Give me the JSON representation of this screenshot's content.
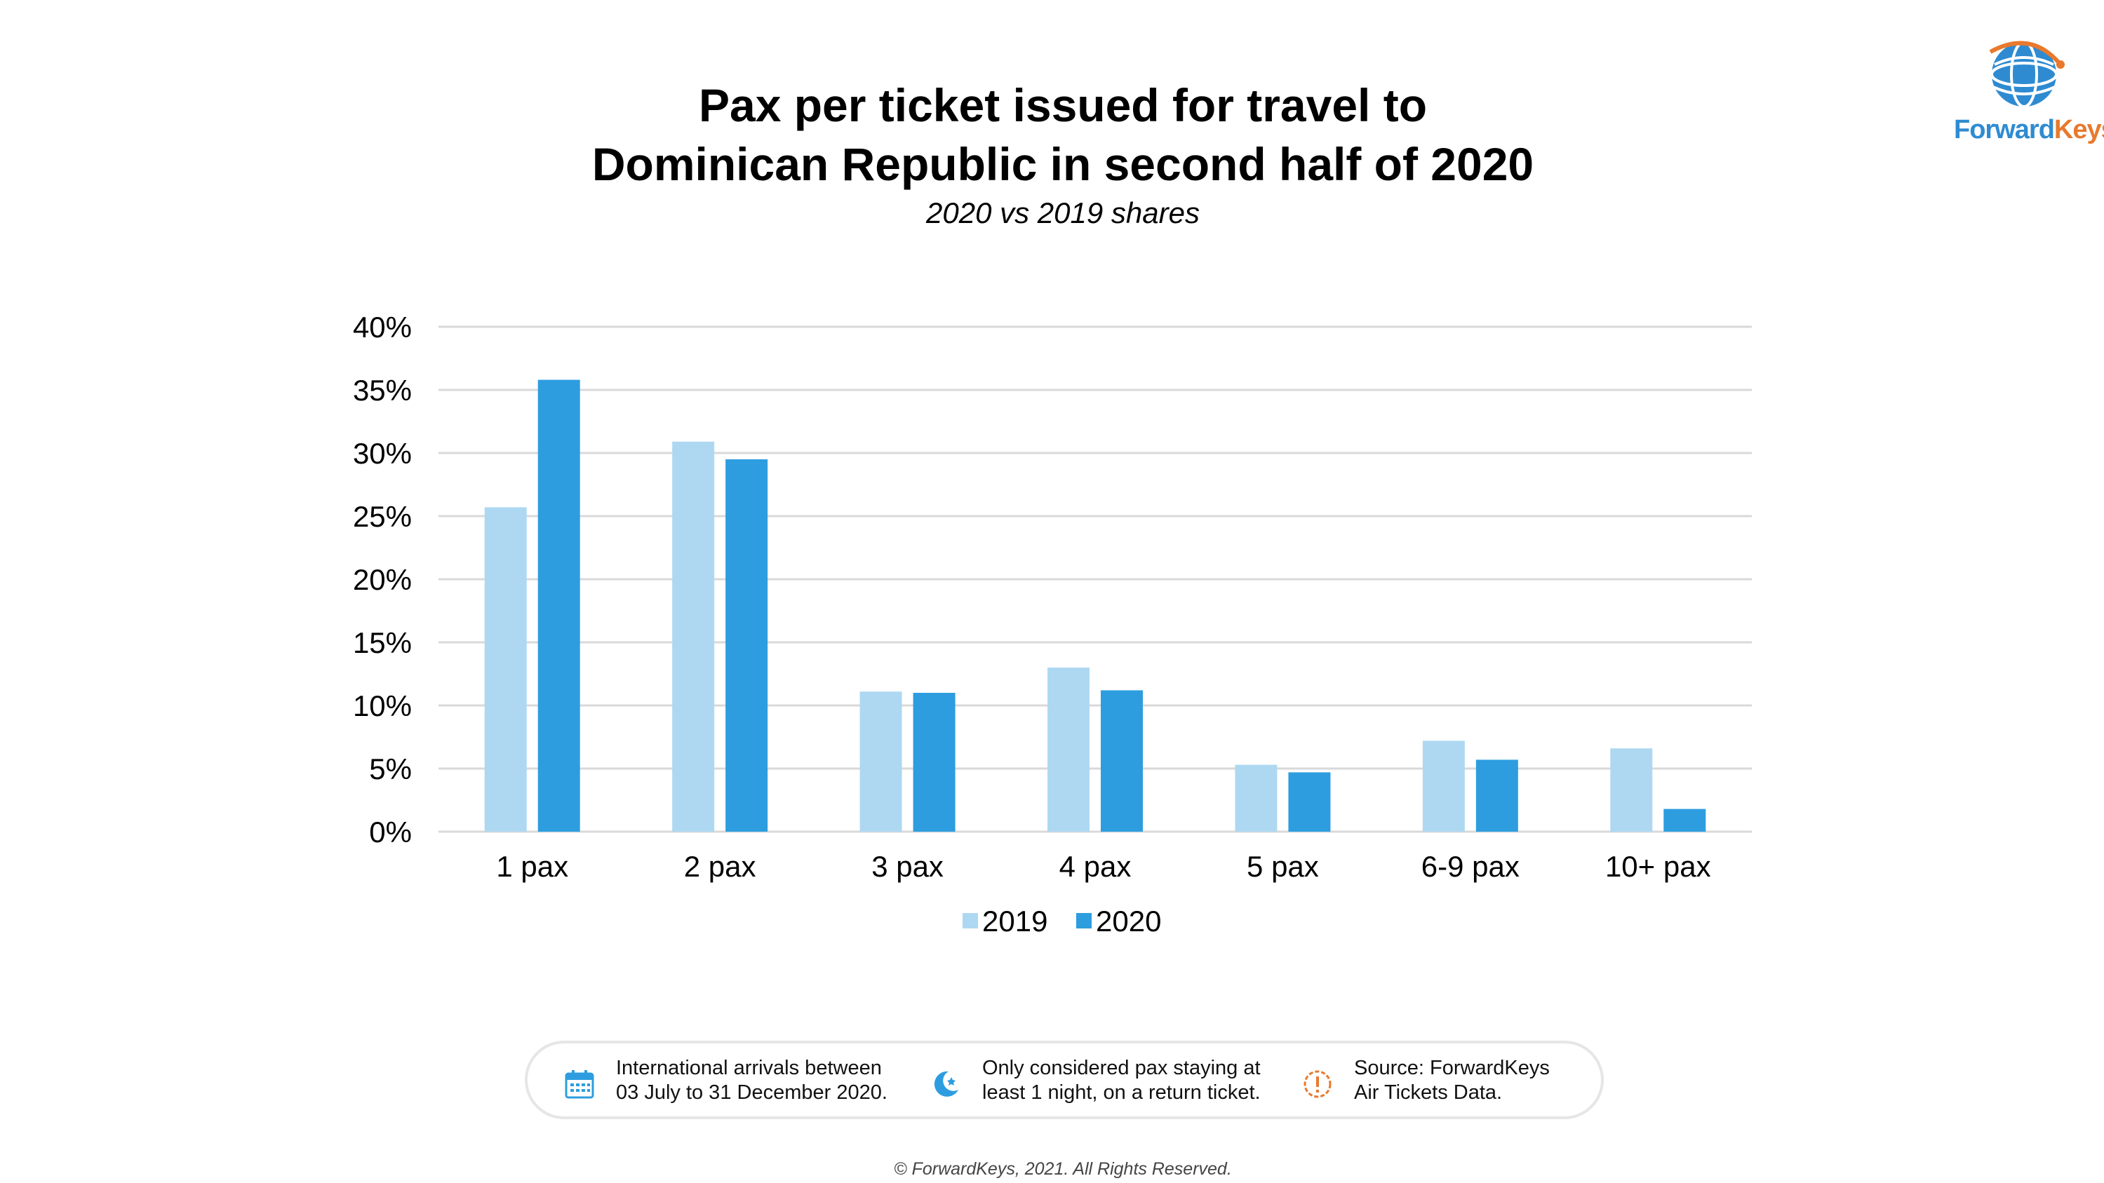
{
  "title": {
    "line1": "Pax per ticket issued for travel to",
    "line2": "Dominican Republic in second half of 2020",
    "subtitle": "2020 vs 2019 shares"
  },
  "logo": {
    "text_forward": "Forward",
    "text_keys": "Keys"
  },
  "chart_data": {
    "type": "bar",
    "title": "Pax per ticket issued for travel to Dominican Republic in second half of 2020",
    "subtitle": "2020 vs 2019 shares",
    "categories": [
      "1 pax",
      "2 pax",
      "3 pax",
      "4 pax",
      "5 pax",
      "6-9 pax",
      "10+ pax"
    ],
    "series": [
      {
        "name": "2019",
        "color": "#aed8f2",
        "values": [
          25.7,
          30.9,
          11.1,
          13.0,
          5.3,
          7.2,
          6.6
        ]
      },
      {
        "name": "2020",
        "color": "#2d9ddf",
        "values": [
          35.8,
          29.5,
          11.0,
          11.2,
          4.7,
          5.7,
          1.8
        ]
      }
    ],
    "yticks": [
      "0%",
      "5%",
      "10%",
      "15%",
      "20%",
      "25%",
      "30%",
      "35%",
      "40%"
    ],
    "ylim": [
      0,
      40
    ],
    "ystep": 5,
    "grid": true,
    "legend": "bottom-center",
    "gridColor": "#d9d9d9"
  },
  "info": {
    "item1": {
      "icon": "calendar-icon",
      "line1": "International arrivals between",
      "line2": "03 July to 31 December 2020."
    },
    "item2": {
      "icon": "moon-icon",
      "line1": "Only considered pax staying at",
      "line2": "least 1 night, on a return ticket."
    },
    "item3": {
      "icon": "alert-icon",
      "line1": "Source: ForwardKeys",
      "line2": "Air Tickets Data."
    }
  },
  "copyright": "© ForwardKeys, 2021. All Rights Reserved."
}
